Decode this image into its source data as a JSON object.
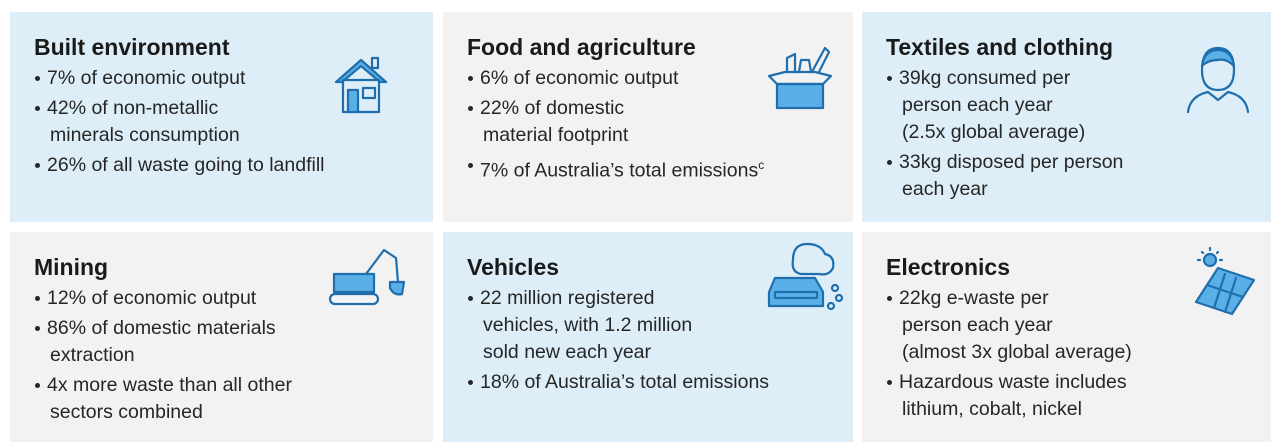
{
  "cards": [
    {
      "title": "Built environment",
      "bullets": [
        {
          "lines": [
            "7% of economic output"
          ]
        },
        {
          "lines": [
            "42% of non-metallic",
            "minerals consumption"
          ]
        },
        {
          "lines": [
            "26% of all waste going to landfill"
          ]
        }
      ]
    },
    {
      "title": "Food and agriculture",
      "bullets": [
        {
          "lines": [
            "6% of economic output"
          ]
        },
        {
          "lines": [
            "22% of domestic",
            "material footprint"
          ]
        },
        {
          "lines": [
            "7% of Australia’s total emissions"
          ],
          "sup": "c"
        }
      ]
    },
    {
      "title": "Textiles and clothing",
      "bullets": [
        {
          "lines": [
            "39kg consumed per",
            "person each year",
            "(2.5x global average)"
          ]
        },
        {
          "lines": [
            "33kg disposed per person",
            "each year"
          ]
        }
      ]
    },
    {
      "title": "Mining",
      "bullets": [
        {
          "lines": [
            "12% of economic output"
          ]
        },
        {
          "lines": [
            "86% of domestic materials",
            "extraction"
          ]
        },
        {
          "lines": [
            "4x more waste than all other",
            "sectors combined"
          ]
        }
      ]
    },
    {
      "title": "Vehicles",
      "bullets": [
        {
          "lines": [
            "22 million registered",
            "vehicles, with 1.2 million",
            " sold new each year"
          ]
        },
        {
          "lines": [
            "18% of Australia’s total emissions"
          ]
        }
      ]
    },
    {
      "title": "Electronics",
      "bullets": [
        {
          "lines": [
            "22kg e-waste per",
            "person each year",
            "(almost 3x global average)"
          ]
        },
        {
          "lines": [
            "Hazardous waste includes",
            "lithium, cobalt, nickel"
          ]
        }
      ]
    }
  ]
}
